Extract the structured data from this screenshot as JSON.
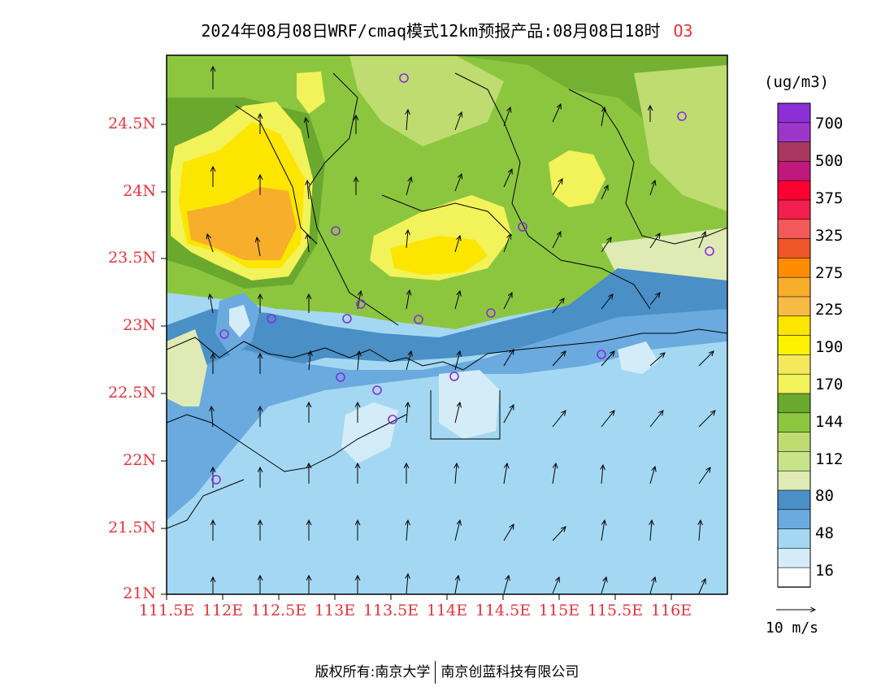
{
  "title": {
    "main": "2024年08月08日WRF/cmaq模式12km预报产品:08月08日18时",
    "species": "O3"
  },
  "axes": {
    "lat_ticks": [
      "24.5N",
      "24N",
      "23.5N",
      "23N",
      "22.5N",
      "22N",
      "21.5N",
      "21N"
    ],
    "lon_ticks": [
      "111.5E",
      "112E",
      "112.5E",
      "113E",
      "113.5E",
      "114E",
      "114.5E",
      "115E",
      "115.5E",
      "116E"
    ]
  },
  "legend": {
    "unit": "(ug/m3)",
    "labels": [
      "700",
      "500",
      "375",
      "325",
      "275",
      "225",
      "190",
      "170",
      "144",
      "112",
      "80",
      "48",
      "16"
    ],
    "colors_top_to_bottom": [
      "#8c2fd6",
      "#9c36c9",
      "#a8385f",
      "#c0187c",
      "#ff0033",
      "#f21e4e",
      "#f25a5a",
      "#ee5528",
      "#ff8c00",
      "#f7ae2b",
      "#f7ba45",
      "#fce600",
      "#fff200",
      "#f4e85c",
      "#f2f25a",
      "#6aa82e",
      "#8cc63f",
      "#bfdc70",
      "#c8e48a",
      "#dfeab4",
      "#4a8fc6",
      "#6aaade",
      "#a4d8f2",
      "#d4ecf8",
      "#ffffff"
    ]
  },
  "vector_key": {
    "label": "10 m/s"
  },
  "footer": {
    "copyright": "版权所有:南京大学",
    "company": "南京创蓝科技有限公司"
  },
  "colors": {
    "tick_red": "#e8333a",
    "station_purple": "#8a2be2"
  }
}
